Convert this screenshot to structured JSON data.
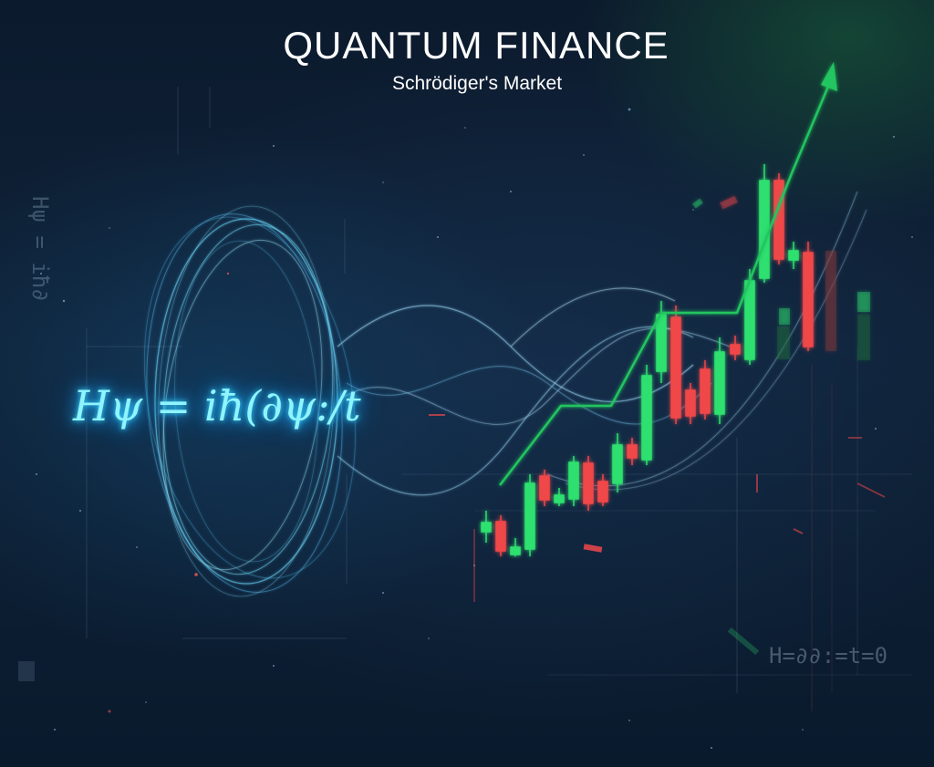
{
  "header": {
    "title": "QUANTUM FINANCE",
    "subtitle": "Schrödiger's Market"
  },
  "equation": {
    "main": "Hψ = iħ(∂ψ:/t",
    "faint_left": "Hψ = iħ∂",
    "faint_bottom_right": "H=∂∂:=t=0"
  },
  "colors": {
    "candle_up": "#2fe06f",
    "candle_down": "#f0474a",
    "trend_line": "#22c55e",
    "wave_glow": "#7fe9ff"
  },
  "icons": {
    "trend_arrow": "up-arrow-icon"
  }
}
